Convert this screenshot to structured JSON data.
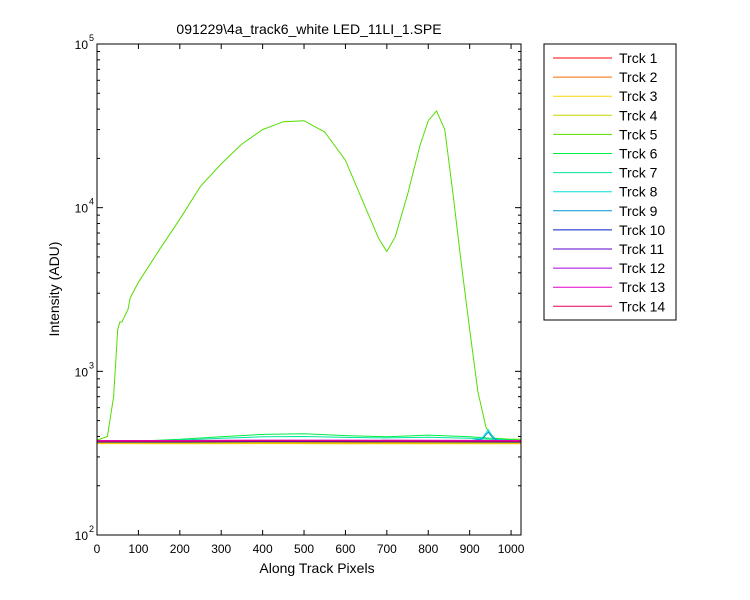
{
  "chart_data": {
    "type": "line",
    "title": "091229\\4a_track6_white LED_11LI_1.SPE",
    "xlabel": "Along Track Pixels",
    "ylabel": "Intensity (ADU)",
    "xlim": [
      0,
      1024
    ],
    "ylim": [
      100,
      100000
    ],
    "yscale": "log",
    "grid": false,
    "legend_position": "outside-top-right",
    "x_ticks": [
      "0",
      "100",
      "200",
      "300",
      "400",
      "500",
      "600",
      "700",
      "800",
      "900",
      "1000"
    ],
    "y_ticks": [
      {
        "base": "10",
        "exp": "2",
        "value": 100
      },
      {
        "base": "10",
        "exp": "3",
        "value": 1000
      },
      {
        "base": "10",
        "exp": "4",
        "value": 10000
      },
      {
        "base": "10",
        "exp": "5",
        "value": 100000
      }
    ],
    "series": [
      {
        "name": "Trck 1",
        "color": "#ff0000",
        "x": [
          0,
          200,
          400,
          600,
          800,
          1024
        ],
        "values": [
          370,
          368,
          369,
          368,
          368,
          368
        ]
      },
      {
        "name": "Trck 2",
        "color": "#ff6a00",
        "x": [
          0,
          200,
          400,
          600,
          800,
          1024
        ],
        "values": [
          365,
          364,
          365,
          364,
          364,
          364
        ]
      },
      {
        "name": "Trck 3",
        "color": "#ffd400",
        "x": [
          0,
          200,
          400,
          600,
          800,
          1024
        ],
        "values": [
          362,
          361,
          362,
          361,
          361,
          361
        ]
      },
      {
        "name": "Trck 4",
        "color": "#c8d400",
        "x": [
          0,
          200,
          400,
          600,
          800,
          1024
        ],
        "values": [
          368,
          366,
          367,
          366,
          366,
          366
        ]
      },
      {
        "name": "Trck 5",
        "color": "#55dd00",
        "x": [
          0,
          25,
          40,
          50,
          55,
          60,
          75,
          80,
          100,
          150,
          200,
          250,
          300,
          350,
          400,
          450,
          500,
          550,
          600,
          650,
          680,
          700,
          720,
          750,
          780,
          800,
          820,
          840,
          860,
          880,
          900,
          920,
          940,
          960,
          1000,
          1024
        ],
        "values": [
          380,
          400,
          700,
          1800,
          2000,
          2000,
          2400,
          2800,
          3500,
          5500,
          8500,
          13500,
          18500,
          24500,
          30000,
          33500,
          34000,
          29000,
          19500,
          9800,
          6500,
          5400,
          6600,
          12000,
          24000,
          34000,
          39000,
          30000,
          12000,
          4500,
          1800,
          750,
          450,
          390,
          385,
          385
        ]
      },
      {
        "name": "Trck 6",
        "color": "#00ee44",
        "x": [
          0,
          100,
          200,
          300,
          400,
          500,
          600,
          700,
          800,
          900,
          1024
        ],
        "values": [
          375,
          375,
          385,
          398,
          412,
          416,
          405,
          398,
          408,
          398,
          378
        ]
      },
      {
        "name": "Trck 7",
        "color": "#00e6a0",
        "x": [
          0,
          100,
          200,
          300,
          400,
          500,
          600,
          700,
          800,
          900,
          1024
        ],
        "values": [
          374,
          374,
          380,
          390,
          398,
          400,
          395,
          392,
          396,
          390,
          377
        ]
      },
      {
        "name": "Trck 8",
        "color": "#00e0e0",
        "x": [
          0,
          200,
          400,
          600,
          800,
          900,
          930,
          945,
          955,
          970,
          1024
        ],
        "values": [
          372,
          372,
          378,
          378,
          378,
          376,
          390,
          440,
          400,
          376,
          374
        ]
      },
      {
        "name": "Trck 9",
        "color": "#0096d6",
        "x": [
          0,
          200,
          400,
          600,
          800,
          900,
          930,
          945,
          955,
          970,
          1024
        ],
        "values": [
          371,
          371,
          376,
          376,
          376,
          374,
          385,
          425,
          395,
          374,
          373
        ]
      },
      {
        "name": "Trck 10",
        "color": "#0022c8",
        "x": [
          0,
          200,
          400,
          600,
          800,
          1024
        ],
        "values": [
          370,
          370,
          372,
          372,
          371,
          370
        ]
      },
      {
        "name": "Trck 11",
        "color": "#5a00c8",
        "x": [
          0,
          200,
          400,
          600,
          800,
          1024
        ],
        "values": [
          372,
          372,
          374,
          374,
          373,
          372
        ]
      },
      {
        "name": "Trck 12",
        "color": "#aa00dd",
        "x": [
          0,
          200,
          400,
          600,
          800,
          1024
        ],
        "values": [
          376,
          376,
          378,
          378,
          377,
          376
        ]
      },
      {
        "name": "Trck 13",
        "color": "#e600c8",
        "x": [
          0,
          200,
          400,
          600,
          800,
          1024
        ],
        "values": [
          378,
          378,
          380,
          380,
          379,
          378
        ]
      },
      {
        "name": "Trck 14",
        "color": "#e6005a",
        "x": [
          0,
          200,
          400,
          600,
          800,
          1024
        ],
        "values": [
          374,
          374,
          376,
          376,
          375,
          374
        ]
      }
    ]
  }
}
